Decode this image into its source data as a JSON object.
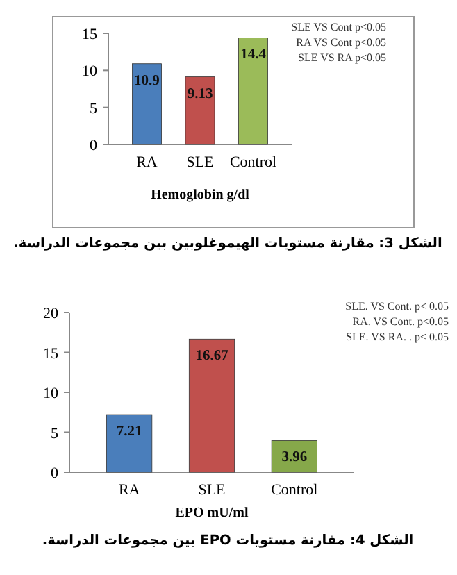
{
  "chart_data": [
    {
      "type": "bar",
      "categories": [
        "RA",
        "SLE",
        "Control"
      ],
      "values": [
        10.9,
        9.13,
        14.4
      ],
      "colors": [
        "#4a7ebb",
        "#c0504d",
        "#9bbb59"
      ],
      "ylim": [
        0,
        15
      ],
      "yticks": [
        0,
        5,
        10,
        15
      ],
      "xlabel": "Hemoglobin g/dl",
      "data_labels": true,
      "annotations": [
        "SLE VS Cont p<0.05",
        "RA VS Cont p<0.05",
        "SLE VS RA p<0.05",
        "الشكل 3: مقارنة مستويات الهيموغلوبين بين مجموعات الدراسة."
      ]
    },
    {
      "type": "bar",
      "categories": [
        "RA",
        "SLE",
        "Control"
      ],
      "values": [
        7.21,
        16.67,
        3.96
      ],
      "colors": [
        "#4a7ebb",
        "#c0504d",
        "#86a84a"
      ],
      "ylim": [
        0,
        20
      ],
      "yticks": [
        0,
        5,
        10,
        15,
        20
      ],
      "xlabel": "EPO mU/ml",
      "data_labels": true,
      "annotations": [
        "SLE. VS Cont. p< 0.05",
        "RA. VS Cont. p<0.05",
        "SLE. VS RA. . p< 0.05",
        "الشكل 4: مقارنة مستويات EPO بين مجموعات الدراسة."
      ]
    }
  ]
}
